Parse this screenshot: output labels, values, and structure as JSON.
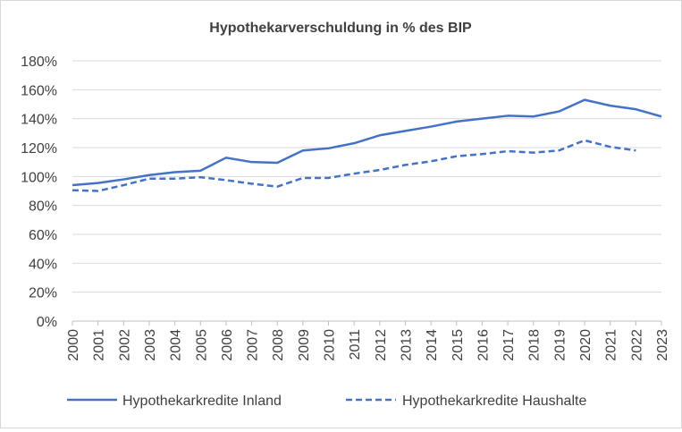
{
  "chart_data": {
    "type": "line",
    "title": "Hypothekarverschuldung in % des BIP",
    "xlabel": "",
    "ylabel": "",
    "ylim": [
      0,
      180
    ],
    "ytick_step": 20,
    "ytick_labels": [
      "0%",
      "20%",
      "40%",
      "60%",
      "80%",
      "100%",
      "120%",
      "140%",
      "160%",
      "180%"
    ],
    "grid": true,
    "legend_position": "bottom",
    "categories": [
      "2000",
      "2001",
      "2002",
      "2003",
      "2004",
      "2005",
      "2006",
      "2007",
      "2008",
      "2009",
      "2010",
      "2011",
      "2012",
      "2013",
      "2014",
      "2015",
      "2016",
      "2017",
      "2018",
      "2019",
      "2020",
      "2021",
      "2022",
      "2023"
    ],
    "series": [
      {
        "name": "Hypothekarkredite Inland",
        "color": "#4472c4",
        "style": "solid",
        "values": [
          94,
          95.5,
          98,
          101,
          103,
          104,
          113,
          110,
          109.5,
          118,
          119.5,
          123,
          128.5,
          131.5,
          134.5,
          138,
          140,
          142,
          141.5,
          145,
          153,
          149,
          146.5,
          141.5
        ]
      },
      {
        "name": "Hypothekarkredite Haushalte",
        "color": "#4472c4",
        "style": "dashed",
        "values": [
          90.5,
          90,
          94,
          98.5,
          98.5,
          99.5,
          97.5,
          95,
          93,
          99,
          99,
          102,
          104.5,
          108,
          110.5,
          114,
          115.5,
          117.5,
          116.5,
          118,
          125,
          120.5,
          118,
          null
        ]
      }
    ]
  }
}
